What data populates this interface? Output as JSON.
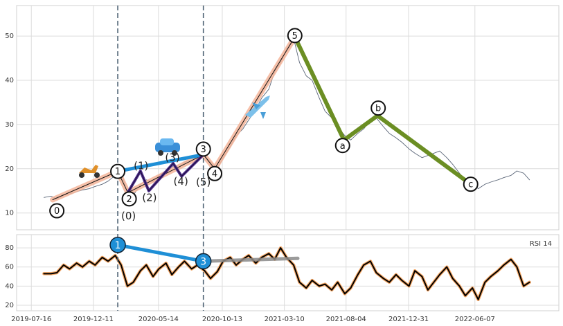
{
  "chart_data": [
    {
      "type": "line",
      "x": [
        "2019-08-15",
        "2019-09-01",
        "2019-09-15",
        "2019-10-01",
        "2019-10-15",
        "2019-11-01",
        "2019-11-15",
        "2019-12-01",
        "2019-12-15",
        "2020-01-01",
        "2020-01-15",
        "2020-02-01",
        "2020-02-15",
        "2020-03-01",
        "2020-03-15",
        "2020-04-01",
        "2020-04-15",
        "2020-05-01",
        "2020-05-15",
        "2020-06-01",
        "2020-06-15",
        "2020-07-01",
        "2020-07-15",
        "2020-08-01",
        "2020-08-15",
        "2020-09-01",
        "2020-09-15",
        "2020-10-01",
        "2020-10-15",
        "2020-11-01",
        "2020-11-15",
        "2020-12-01",
        "2020-12-15",
        "2021-01-01",
        "2021-01-15",
        "2021-02-01",
        "2021-02-15",
        "2021-03-01",
        "2021-03-15",
        "2021-04-01",
        "2021-04-15",
        "2021-05-01",
        "2021-05-15",
        "2021-06-01",
        "2021-06-15",
        "2021-07-01",
        "2021-07-15",
        "2021-08-01",
        "2021-08-15",
        "2021-09-01",
        "2021-09-15",
        "2021-10-01",
        "2021-10-15",
        "2021-11-01",
        "2021-11-15",
        "2021-12-01",
        "2021-12-15",
        "2022-01-01",
        "2022-01-15",
        "2022-02-01",
        "2022-02-15",
        "2022-03-01",
        "2022-03-15",
        "2022-04-01",
        "2022-04-15",
        "2022-05-01",
        "2022-05-15",
        "2022-06-01",
        "2022-06-15",
        "2022-07-01",
        "2022-07-15",
        "2022-08-01",
        "2022-08-15",
        "2022-09-01",
        "2022-09-15",
        "2022-10-01",
        "2022-10-15"
      ],
      "series": [
        {
          "color": "#5a6577",
          "values": [
            13.5,
            13.8,
            13.2,
            14.0,
            14.3,
            14.8,
            15.2,
            15.5,
            16.0,
            16.5,
            17.2,
            18.5,
            19.3,
            14.5,
            14.0,
            16.5,
            17.5,
            17.0,
            18.5,
            19.5,
            20.5,
            20.0,
            21.5,
            22.0,
            22.5,
            23.0,
            21.5,
            20.0,
            22.5,
            25.0,
            27.5,
            29.0,
            31.0,
            33.5,
            36.0,
            38.0,
            42.0,
            44.0,
            47.0,
            49.5,
            44.0,
            41.0,
            40.0,
            36.0,
            33.0,
            31.5,
            29.5,
            27.5,
            26.5,
            28.0,
            29.0,
            31.0,
            31.5,
            29.5,
            28.0,
            27.0,
            26.0,
            24.5,
            23.5,
            22.5,
            23.0,
            23.5,
            24.0,
            22.5,
            21.0,
            19.0,
            17.5,
            16.5,
            15.5,
            16.5,
            17.0,
            17.5,
            18.0,
            18.5,
            19.5,
            19.0,
            17.5
          ]
        }
      ],
      "xlim": [
        "2019-06-11",
        "2022-12-24"
      ],
      "xticks": [
        "2019-07-16",
        "2019-12-11",
        "2020-05-14",
        "2020-10-13",
        "2021-03-10",
        "2021-08-04",
        "2021-12-31",
        "2022-06-07"
      ],
      "ylim": [
        6.2,
        56.9
      ],
      "yticks": [
        10,
        20,
        30,
        40,
        50
      ],
      "grid": true,
      "vlines": {
        "color": "#4f6475",
        "x": [
          "2020-02-07",
          "2020-08-29"
        ]
      },
      "waves": {
        "color": "#f4b59a",
        "points": [
          {
            "label": "0",
            "x": "2019-09-05",
            "y": 13.0
          },
          {
            "label": "1",
            "x": "2020-02-07",
            "y": 19.4
          },
          {
            "label": "2",
            "x": "2020-03-02",
            "y": 14.6
          },
          {
            "label": "3",
            "x": "2020-08-29",
            "y": 23.2
          },
          {
            "label": "4",
            "x": "2020-09-25",
            "y": 20.0
          },
          {
            "label": "5",
            "x": "2021-04-04",
            "y": 49.8
          }
        ]
      },
      "corrective": {
        "color": "#6b8e23",
        "points": [
          {
            "label": "a",
            "x": "2021-07-30",
            "y": 26.5
          },
          {
            "label": "b",
            "x": "2021-10-18",
            "y": 32.0
          },
          {
            "label": "c",
            "x": "2022-05-28",
            "y": 16.5
          }
        ]
      },
      "trend": {
        "color": "#1f8fd6"
      },
      "subwaves": {
        "color": "#4b2a8a",
        "points": [
          {
            "label": "(0)",
            "x": "2020-03-02",
            "y": 14.6
          },
          {
            "label": "(1)",
            "x": "2020-04-01",
            "y": 19.5
          },
          {
            "label": "(2)",
            "x": "2020-04-21",
            "y": 15.0
          },
          {
            "label": "(3)",
            "x": "2020-06-18",
            "y": 21.2
          },
          {
            "label": "(4)",
            "x": "2020-07-08",
            "y": 18.3
          },
          {
            "label": "(5)",
            "x": "2020-08-29",
            "y": 23.2
          }
        ]
      }
    },
    {
      "type": "line",
      "title": "RSI 14",
      "x": [
        "2019-08-15",
        "2019-09-01",
        "2019-09-15",
        "2019-10-01",
        "2019-10-15",
        "2019-11-01",
        "2019-11-15",
        "2019-12-01",
        "2019-12-15",
        "2020-01-01",
        "2020-01-15",
        "2020-02-01",
        "2020-02-15",
        "2020-03-01",
        "2020-03-15",
        "2020-04-01",
        "2020-04-15",
        "2020-05-01",
        "2020-05-15",
        "2020-06-01",
        "2020-06-15",
        "2020-07-01",
        "2020-07-15",
        "2020-08-01",
        "2020-08-15",
        "2020-09-01",
        "2020-09-15",
        "2020-10-01",
        "2020-10-15",
        "2020-11-01",
        "2020-11-15",
        "2020-12-01",
        "2020-12-15",
        "2021-01-01",
        "2021-01-15",
        "2021-02-01",
        "2021-02-15",
        "2021-03-01",
        "2021-03-15",
        "2021-04-01",
        "2021-04-15",
        "2021-05-01",
        "2021-05-15",
        "2021-06-01",
        "2021-06-15",
        "2021-07-01",
        "2021-07-15",
        "2021-08-01",
        "2021-08-15",
        "2021-09-01",
        "2021-09-15",
        "2021-10-01",
        "2021-10-15",
        "2021-11-01",
        "2021-11-15",
        "2021-12-01",
        "2021-12-15",
        "2022-01-01",
        "2022-01-15",
        "2022-02-01",
        "2022-02-15",
        "2022-03-01",
        "2022-03-15",
        "2022-04-01",
        "2022-04-15",
        "2022-05-01",
        "2022-05-15",
        "2022-06-01",
        "2022-06-15",
        "2022-07-01",
        "2022-07-15",
        "2022-08-01",
        "2022-08-15",
        "2022-09-01",
        "2022-09-15",
        "2022-10-01",
        "2022-10-15"
      ],
      "series": [
        {
          "color": "#000000",
          "outline": "#f4a460",
          "values": [
            53,
            53,
            54,
            62,
            58,
            64,
            60,
            66,
            62,
            70,
            66,
            72,
            62,
            40,
            44,
            56,
            62,
            50,
            58,
            64,
            52,
            60,
            66,
            58,
            62,
            56,
            48,
            55,
            66,
            70,
            62,
            68,
            72,
            64,
            70,
            74,
            68,
            80,
            70,
            62,
            44,
            38,
            46,
            40,
            42,
            36,
            44,
            32,
            38,
            52,
            62,
            66,
            54,
            48,
            44,
            52,
            46,
            40,
            56,
            50,
            36,
            44,
            52,
            60,
            48,
            40,
            30,
            38,
            26,
            44,
            50,
            56,
            62,
            68,
            60,
            40,
            44
          ]
        }
      ],
      "xlim": [
        "2019-06-11",
        "2022-12-24"
      ],
      "xticks": [
        "2019-07-16",
        "2019-12-11",
        "2020-05-14",
        "2020-10-13",
        "2021-03-10",
        "2021-08-04",
        "2021-12-31",
        "2022-06-07"
      ],
      "ylim": [
        14.2,
        93.8
      ],
      "yticks": [
        20,
        40,
        60,
        80
      ],
      "grid": true,
      "signals": {
        "color": "#1f8fd6",
        "points": [
          {
            "label": "1",
            "x": "2020-02-07",
            "y": 83
          },
          {
            "label": "3",
            "x": "2020-08-29",
            "y": 66
          }
        ]
      },
      "projection": {
        "color": "#8a8a8a",
        "points": [
          {
            "x": "2020-08-29",
            "y": 66
          },
          {
            "x": "2021-04-11",
            "y": 69
          }
        ]
      }
    }
  ]
}
